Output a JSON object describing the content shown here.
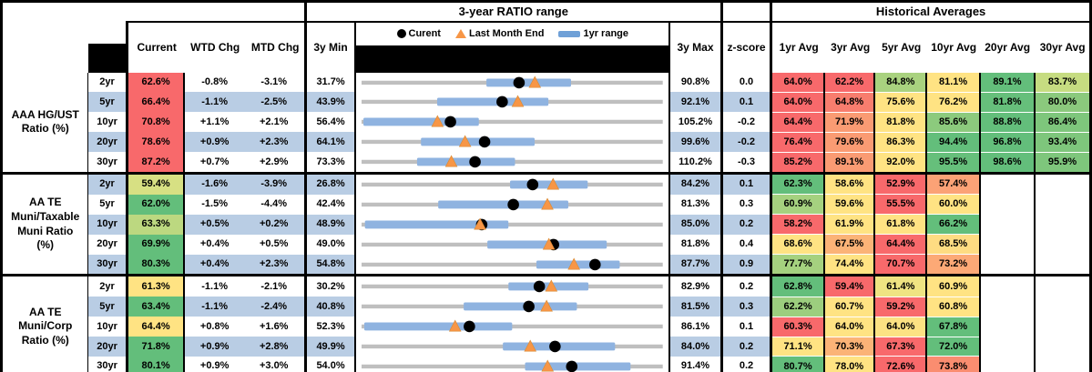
{
  "section_headers": {
    "range": "3-year RATIO range",
    "averages": "Historical Averages"
  },
  "columns": {
    "current": "Current",
    "wtd": "WTD Chg",
    "mtd": "MTD Chg",
    "min": "3y Min",
    "max": "3y Max",
    "zscore": "z-score",
    "avg_headers": [
      "1yr Avg",
      "3yr Avg",
      "5yr Avg",
      "10yr Avg",
      "20yr Avg",
      "30yr Avg"
    ]
  },
  "legend": {
    "current": "Curent",
    "last_month_end": "Last Month End",
    "range": "1yr range"
  },
  "colors": {
    "stripe": "#B9CDE4",
    "bar": "#8FB3E0",
    "track": "#BFBFBF",
    "triangle": "#F79646",
    "dot": "#000000",
    "legend_swatch": "#6FA0D7",
    "heat_red": "#F8696B",
    "heat_yellow": "#FFE383",
    "heat_green": "#63BE7B"
  },
  "chart_data": {
    "type": "table",
    "embedded_chart": {
      "type": "range-dot-plot",
      "note": "each row x-axis spans its own 3y Min to 3y Max; dot = Curent, triangle = Last Month End, blue bar = 1yr range",
      "series": [
        "Curent",
        "Last Month End",
        "1yr range"
      ]
    },
    "groups": [
      {
        "label": "AAA HG/UST\nRatio (%)",
        "rows": [
          {
            "tenor": "2yr",
            "current": "62.6%",
            "current_color": "#F8696B",
            "wtd": "-0.8%",
            "mtd": "-3.1%",
            "min": "31.7%",
            "max": "90.8%",
            "z": "0.0",
            "bar": [
              56.2,
              72.8
            ],
            "lme": 65.7,
            "avgs": [
              {
                "v": "64.0%",
                "c": "#F8696B"
              },
              {
                "v": "62.2%",
                "c": "#F8696B"
              },
              {
                "v": "84.8%",
                "c": "#A9D27F"
              },
              {
                "v": "81.1%",
                "c": "#FFE383"
              },
              {
                "v": "89.1%",
                "c": "#63BE7B"
              },
              {
                "v": "83.7%",
                "c": "#C6DC81"
              }
            ]
          },
          {
            "tenor": "5yr",
            "current": "66.4%",
            "current_color": "#F8696B",
            "wtd": "-1.1%",
            "mtd": "-2.5%",
            "min": "43.9%",
            "max": "92.1%",
            "z": "0.1",
            "bar": [
              56.0,
              73.8
            ],
            "lme": 68.9,
            "avgs": [
              {
                "v": "64.0%",
                "c": "#F8696B"
              },
              {
                "v": "64.8%",
                "c": "#F87D6E"
              },
              {
                "v": "75.6%",
                "c": "#FFE383"
              },
              {
                "v": "76.2%",
                "c": "#FFE383"
              },
              {
                "v": "81.8%",
                "c": "#66BF7B"
              },
              {
                "v": "80.0%",
                "c": "#8BC97D"
              }
            ]
          },
          {
            "tenor": "10yr",
            "current": "70.8%",
            "current_color": "#F8696B",
            "wtd": "+1.1%",
            "mtd": "+2.1%",
            "min": "56.4%",
            "max": "105.2%",
            "z": "-0.2",
            "bar": [
              56.7,
              75.4
            ],
            "lme": 68.7,
            "avgs": [
              {
                "v": "64.4%",
                "c": "#F8696B"
              },
              {
                "v": "71.9%",
                "c": "#FA9B73"
              },
              {
                "v": "81.8%",
                "c": "#FFE383"
              },
              {
                "v": "85.6%",
                "c": "#8CCA7D"
              },
              {
                "v": "88.8%",
                "c": "#63BE7B"
              },
              {
                "v": "86.4%",
                "c": "#7EC67C"
              }
            ]
          },
          {
            "tenor": "20yr",
            "current": "78.6%",
            "current_color": "#F8696B",
            "wtd": "+0.9%",
            "mtd": "+2.3%",
            "min": "64.1%",
            "max": "99.6%",
            "z": "-0.2",
            "bar": [
              71.1,
              84.5
            ],
            "lme": 76.3,
            "avgs": [
              {
                "v": "76.4%",
                "c": "#F8696B"
              },
              {
                "v": "79.6%",
                "c": "#FA9B73"
              },
              {
                "v": "86.3%",
                "c": "#FFE383"
              },
              {
                "v": "94.4%",
                "c": "#63BE7B"
              },
              {
                "v": "96.8%",
                "c": "#63BE7B"
              },
              {
                "v": "93.4%",
                "c": "#7EC67C"
              }
            ]
          },
          {
            "tenor": "30yr",
            "current": "87.2%",
            "current_color": "#F8696B",
            "wtd": "+0.7%",
            "mtd": "+2.9%",
            "min": "73.3%",
            "max": "110.2%",
            "z": "-0.3",
            "bar": [
              80.1,
              92.1
            ],
            "lme": 84.3,
            "avgs": [
              {
                "v": "85.2%",
                "c": "#F8696B"
              },
              {
                "v": "89.1%",
                "c": "#FA9B73"
              },
              {
                "v": "92.0%",
                "c": "#FFE383"
              },
              {
                "v": "95.5%",
                "c": "#66BF7B"
              },
              {
                "v": "98.6%",
                "c": "#63BE7B"
              },
              {
                "v": "95.9%",
                "c": "#7EC67C"
              }
            ]
          }
        ]
      },
      {
        "label": "AA TE\nMuni/Taxable\nMuni Ratio\n(%)",
        "rows": [
          {
            "tenor": "2yr",
            "current": "59.4%",
            "current_color": "#D7E083",
            "wtd": "-1.6%",
            "mtd": "-3.9%",
            "min": "26.8%",
            "max": "84.2%",
            "z": "0.1",
            "bar": [
              55.1,
              69.9
            ],
            "lme": 63.3,
            "avgs": [
              {
                "v": "62.3%",
                "c": "#63BE7B"
              },
              {
                "v": "58.6%",
                "c": "#FFE383"
              },
              {
                "v": "52.9%",
                "c": "#F8696B"
              },
              {
                "v": "57.4%",
                "c": "#FBA276"
              },
              null,
              null
            ]
          },
          {
            "tenor": "5yr",
            "current": "62.0%",
            "current_color": "#63BE7B",
            "wtd": "-1.5%",
            "mtd": "-4.4%",
            "min": "42.4%",
            "max": "81.3%",
            "z": "0.3",
            "bar": [
              52.3,
              69.1
            ],
            "lme": 66.4,
            "avgs": [
              {
                "v": "60.9%",
                "c": "#A5D17F"
              },
              {
                "v": "59.6%",
                "c": "#FFE383"
              },
              {
                "v": "55.5%",
                "c": "#F8696B"
              },
              {
                "v": "60.0%",
                "c": "#FFE383"
              },
              null,
              null
            ]
          },
          {
            "tenor": "10yr",
            "current": "63.3%",
            "current_color": "#BCD880",
            "wtd": "+0.5%",
            "mtd": "+0.2%",
            "min": "48.9%",
            "max": "85.0%",
            "z": "0.2",
            "bar": [
              49.3,
              66.5
            ],
            "lme": 63.1,
            "avgs": [
              {
                "v": "58.2%",
                "c": "#F8696B"
              },
              {
                "v": "61.9%",
                "c": "#FFE383"
              },
              {
                "v": "61.8%",
                "c": "#FFE383"
              },
              {
                "v": "66.2%",
                "c": "#63BE7B"
              },
              null,
              null
            ]
          },
          {
            "tenor": "20yr",
            "current": "69.9%",
            "current_color": "#63BE7B",
            "wtd": "+0.4%",
            "mtd": "+0.5%",
            "min": "49.0%",
            "max": "81.8%",
            "z": "0.4",
            "bar": [
              62.7,
              75.7
            ],
            "lme": 69.4,
            "avgs": [
              {
                "v": "68.6%",
                "c": "#FFE383"
              },
              {
                "v": "67.5%",
                "c": "#FBB377"
              },
              {
                "v": "64.4%",
                "c": "#F8696B"
              },
              {
                "v": "68.5%",
                "c": "#FEDC82"
              },
              null,
              null
            ]
          },
          {
            "tenor": "30yr",
            "current": "80.3%",
            "current_color": "#63BE7B",
            "wtd": "+0.4%",
            "mtd": "+2.3%",
            "min": "54.8%",
            "max": "87.7%",
            "z": "0.9",
            "bar": [
              73.9,
              83.0
            ],
            "lme": 78.0,
            "avgs": [
              {
                "v": "77.7%",
                "c": "#A5D17F"
              },
              {
                "v": "74.4%",
                "c": "#FFE383"
              },
              {
                "v": "70.7%",
                "c": "#F8696B"
              },
              {
                "v": "73.2%",
                "c": "#FCA976"
              },
              null,
              null
            ]
          }
        ]
      },
      {
        "label": "AA TE\nMuni/Corp\nRatio (%)",
        "rows": [
          {
            "tenor": "2yr",
            "current": "61.3%",
            "current_color": "#FFE383",
            "wtd": "-1.1%",
            "mtd": "-2.1%",
            "min": "30.2%",
            "max": "82.9%",
            "z": "0.2",
            "bar": [
              55.9,
              69.9
            ],
            "lme": 63.4,
            "avgs": [
              {
                "v": "62.8%",
                "c": "#63BE7B"
              },
              {
                "v": "59.4%",
                "c": "#F8696B"
              },
              {
                "v": "61.4%",
                "c": "#EFE482"
              },
              {
                "v": "60.9%",
                "c": "#FFE383"
              },
              null,
              null
            ]
          },
          {
            "tenor": "5yr",
            "current": "63.4%",
            "current_color": "#63BE7B",
            "wtd": "-1.1%",
            "mtd": "-2.4%",
            "min": "40.8%",
            "max": "81.5%",
            "z": "0.3",
            "bar": [
              54.6,
              69.9
            ],
            "lme": 65.8,
            "avgs": [
              {
                "v": "62.2%",
                "c": "#9CCE7E"
              },
              {
                "v": "60.7%",
                "c": "#FFE383"
              },
              {
                "v": "59.2%",
                "c": "#F8696B"
              },
              {
                "v": "60.8%",
                "c": "#FFE383"
              },
              null,
              null
            ]
          },
          {
            "tenor": "10yr",
            "current": "64.4%",
            "current_color": "#FFE383",
            "wtd": "+0.8%",
            "mtd": "+1.6%",
            "min": "52.3%",
            "max": "86.1%",
            "z": "0.1",
            "bar": [
              52.6,
              69.2
            ],
            "lme": 62.8,
            "avgs": [
              {
                "v": "60.3%",
                "c": "#F8696B"
              },
              {
                "v": "64.0%",
                "c": "#FFE383"
              },
              {
                "v": "64.0%",
                "c": "#FCE283"
              },
              {
                "v": "67.8%",
                "c": "#63BE7B"
              },
              null,
              null
            ]
          },
          {
            "tenor": "20yr",
            "current": "71.8%",
            "current_color": "#63BE7B",
            "wtd": "+0.9%",
            "mtd": "+2.8%",
            "min": "49.9%",
            "max": "84.0%",
            "z": "0.2",
            "bar": [
              65.9,
              78.6
            ],
            "lme": 69.0,
            "avgs": [
              {
                "v": "71.1%",
                "c": "#FFE383"
              },
              {
                "v": "70.3%",
                "c": "#FBB377"
              },
              {
                "v": "67.3%",
                "c": "#F8696B"
              },
              {
                "v": "72.0%",
                "c": "#63BE7B"
              },
              null,
              null
            ]
          },
          {
            "tenor": "30yr",
            "current": "80.1%",
            "current_color": "#63BE7B",
            "wtd": "+0.9%",
            "mtd": "+3.0%",
            "min": "54.0%",
            "max": "91.4%",
            "z": "0.2",
            "bar": [
              74.3,
              87.4
            ],
            "lme": 77.1,
            "avgs": [
              {
                "v": "80.7%",
                "c": "#63BE7B"
              },
              {
                "v": "78.0%",
                "c": "#FFE383"
              },
              {
                "v": "72.6%",
                "c": "#F8696B"
              },
              {
                "v": "73.8%",
                "c": "#FA8D70"
              },
              null,
              null
            ]
          }
        ]
      }
    ]
  }
}
